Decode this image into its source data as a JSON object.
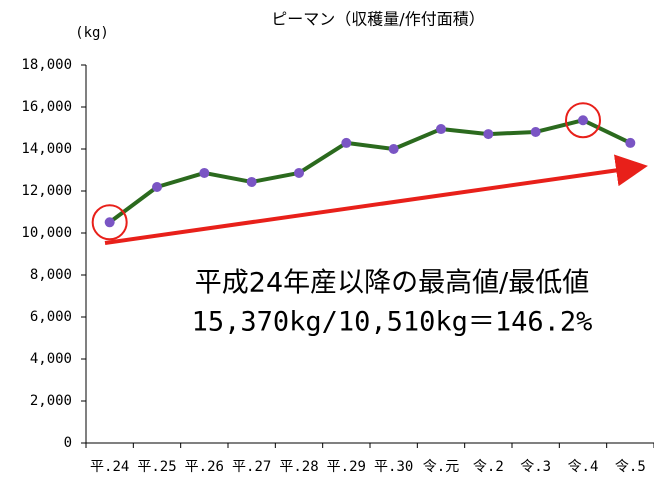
{
  "chart_data": {
    "type": "line",
    "title": "ピーマン（収穫量/作付面積）",
    "y_unit": "(kg)",
    "annotation": [
      "平成24年産以降の最高値/最低値",
      "15,370kg/10,510kg＝146.2%"
    ],
    "categories": [
      "平.24",
      "平.25",
      "平.26",
      "平.27",
      "平.28",
      "平.29",
      "平.30",
      "令.元",
      "令.2",
      "令.3",
      "令.4",
      "令.5"
    ],
    "series": [
      {
        "name": "収穫量/作付面積",
        "color": "#2b6a1e",
        "marker_color": "#7a55c4",
        "values": [
          10510,
          12190,
          12860,
          12430,
          12860,
          14290,
          14000,
          14950,
          14710,
          14810,
          15370,
          14290
        ]
      }
    ],
    "ylim": [
      0,
      18000
    ],
    "yticks": [
      0,
      {
        "value": 2000,
        "label": "2,000"
      },
      {
        "value": 4000,
        "label": "4,000"
      },
      {
        "value": 6000,
        "label": "6,000"
      },
      {
        "value": 8000,
        "label": "8,000"
      },
      {
        "value": 10000,
        "label": "10,000"
      },
      {
        "value": 12000,
        "label": "12,000"
      },
      {
        "value": 14000,
        "label": "14,000"
      },
      {
        "value": 16000,
        "label": "16,000"
      },
      {
        "value": 18000,
        "label": "18,000"
      }
    ],
    "grid": false
  }
}
